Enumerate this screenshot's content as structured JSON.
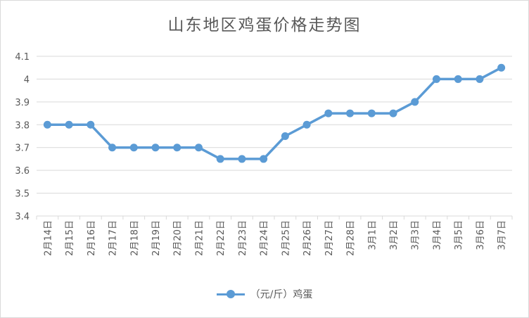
{
  "chart_data": {
    "type": "line",
    "title": "山东地区鸡蛋价格走势图",
    "categories": [
      "2月14日",
      "2月15日",
      "2月16日",
      "2月17日",
      "2月18日",
      "2月19日",
      "2月20日",
      "2月21日",
      "2月22日",
      "2月23日",
      "2月24日",
      "2月25日",
      "2月26日",
      "2月27日",
      "2月28日",
      "3月1日",
      "3月2日",
      "3月3日",
      "3月4日",
      "3月5日",
      "3月6日",
      "3月7日"
    ],
    "series": [
      {
        "name": "（元/斤）鸡蛋",
        "values": [
          3.8,
          3.8,
          3.8,
          3.7,
          3.7,
          3.7,
          3.7,
          3.7,
          3.65,
          3.65,
          3.65,
          3.75,
          3.8,
          3.85,
          3.85,
          3.85,
          3.85,
          3.9,
          4.0,
          4.0,
          4.0,
          4.05
        ]
      }
    ],
    "ylim": [
      3.4,
      4.1
    ],
    "yticks": [
      "3.4",
      "3.5",
      "3.6",
      "3.7",
      "3.8",
      "3.9",
      "4",
      "4.1"
    ],
    "grid": true,
    "legend_position": "bottom",
    "colors": {
      "series": "#5b9bd5",
      "grid": "#d9d9d9",
      "text": "#595959"
    }
  }
}
